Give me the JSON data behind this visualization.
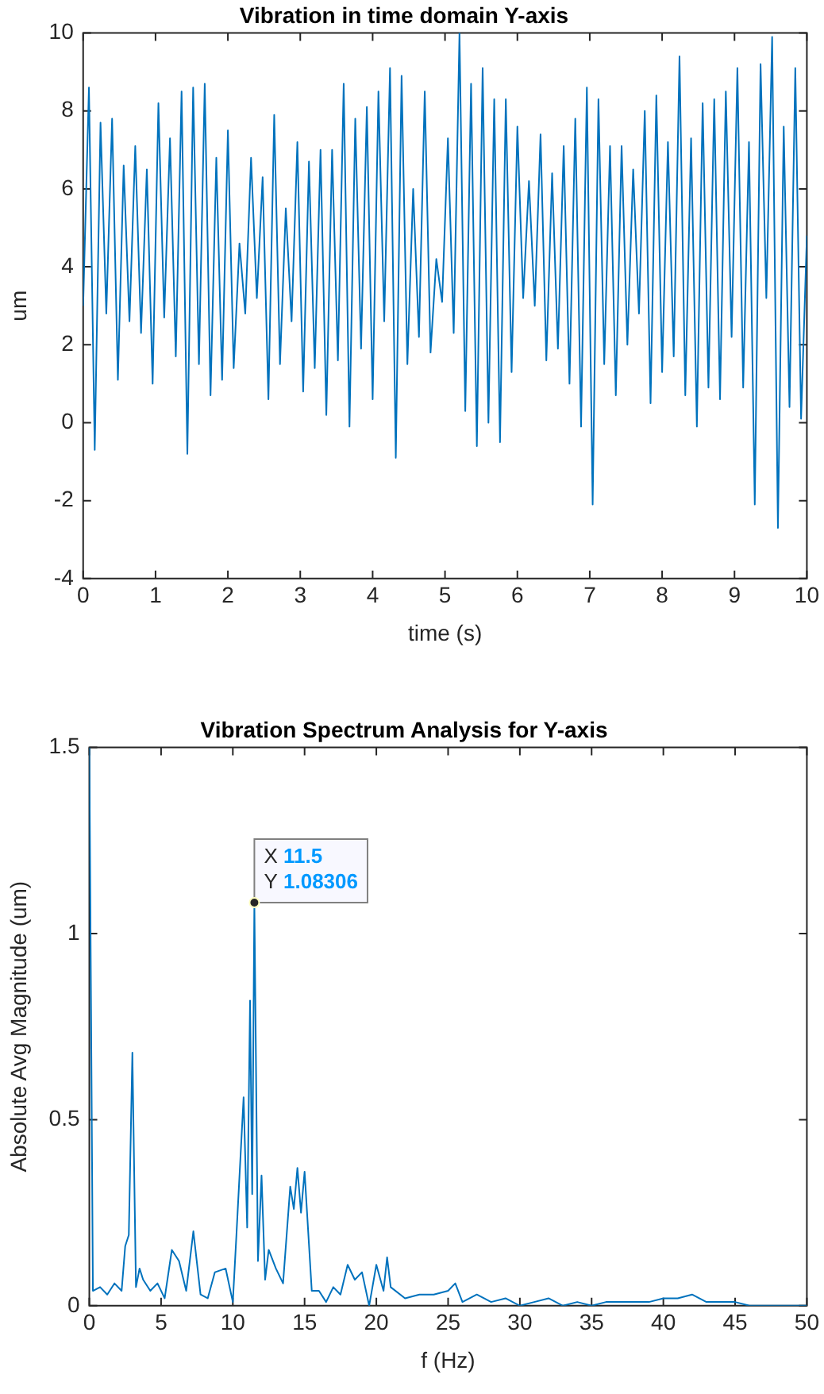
{
  "chart_data": [
    {
      "type": "line",
      "title": "Vibration in time domain Y-axis",
      "xlabel": "time (s)",
      "ylabel": "um",
      "xlim": [
        0,
        10
      ],
      "xticks": [
        0,
        1,
        2,
        3,
        4,
        5,
        6,
        7,
        8,
        9,
        10
      ],
      "ylim": [
        -4,
        10
      ],
      "yticks": [
        -4,
        -2,
        0,
        2,
        4,
        6,
        8,
        10
      ],
      "grid": false,
      "legend": false,
      "marker": "none",
      "line_style": "solid",
      "series": [
        {
          "color": "#0072bd",
          "x": [
            0,
            0.08,
            0.16,
            0.24,
            0.32,
            0.4,
            0.48,
            0.56,
            0.64,
            0.72,
            0.8,
            0.88,
            0.96,
            1.04,
            1.12,
            1.2,
            1.28,
            1.36,
            1.44,
            1.52,
            1.6,
            1.68,
            1.76,
            1.84,
            1.92,
            2,
            2.08,
            2.16,
            2.24,
            2.32,
            2.4,
            2.48,
            2.56,
            2.64,
            2.72,
            2.8,
            2.88,
            2.96,
            3.04,
            3.12,
            3.2,
            3.28,
            3.36,
            3.44,
            3.52,
            3.6,
            3.68,
            3.76,
            3.84,
            3.92,
            4,
            4.08,
            4.16,
            4.24,
            4.32,
            4.4,
            4.48,
            4.56,
            4.64,
            4.72,
            4.8,
            4.88,
            4.96,
            5.04,
            5.12,
            5.2,
            5.28,
            5.36,
            5.44,
            5.52,
            5.6,
            5.68,
            5.76,
            5.84,
            5.92,
            6,
            6.08,
            6.16,
            6.24,
            6.32,
            6.4,
            6.48,
            6.56,
            6.64,
            6.72,
            6.8,
            6.88,
            6.96,
            7.04,
            7.12,
            7.2,
            7.28,
            7.36,
            7.44,
            7.52,
            7.6,
            7.68,
            7.76,
            7.84,
            7.92,
            8,
            8.08,
            8.16,
            8.24,
            8.32,
            8.4,
            8.48,
            8.56,
            8.64,
            8.72,
            8.8,
            8.88,
            8.96,
            9.04,
            9.12,
            9.2,
            9.28,
            9.36,
            9.44,
            9.52,
            9.6,
            9.68,
            9.76,
            9.84,
            9.92,
            10
          ],
          "values": [
            3.0,
            8.6,
            -0.7,
            7.7,
            2.8,
            7.8,
            1.1,
            6.6,
            2.6,
            7.1,
            2.3,
            6.5,
            1.0,
            8.2,
            2.7,
            7.3,
            1.7,
            8.5,
            -0.8,
            8.6,
            1.5,
            8.7,
            0.7,
            6.8,
            1.1,
            7.5,
            1.4,
            4.6,
            2.8,
            6.8,
            3.2,
            6.3,
            0.6,
            7.9,
            1.5,
            5.5,
            2.6,
            7.2,
            0.8,
            6.7,
            1.4,
            7.0,
            0.2,
            7.0,
            1.6,
            8.7,
            -0.1,
            7.8,
            1.9,
            8.1,
            0.6,
            8.5,
            2.6,
            9.1,
            -0.9,
            8.9,
            1.5,
            6.0,
            2.2,
            8.5,
            1.8,
            4.2,
            3.1,
            7.3,
            2.3,
            10.0,
            0.3,
            8.7,
            -0.6,
            9.1,
            0.0,
            8.3,
            -0.5,
            8.3,
            1.3,
            7.6,
            3.2,
            6.2,
            3.0,
            7.4,
            1.6,
            6.4,
            1.9,
            7.1,
            1.0,
            7.8,
            -0.1,
            8.6,
            -2.1,
            8.3,
            1.5,
            7.1,
            0.7,
            7.1,
            2.0,
            6.5,
            2.8,
            8.0,
            0.5,
            8.4,
            1.3,
            7.2,
            1.7,
            9.4,
            0.7,
            7.3,
            -0.1,
            8.2,
            0.9,
            8.3,
            0.6,
            8.5,
            2.2,
            9.1,
            0.9,
            7.2,
            -2.1,
            9.2,
            3.2,
            9.9,
            -2.7,
            7.6,
            0.4,
            9.1,
            0.1,
            4.8
          ]
        }
      ]
    },
    {
      "type": "line",
      "title": "Vibration Spectrum Analysis for Y-axis",
      "xlabel": "f (Hz)",
      "ylabel": "Absolute Avg Magnitude (um)",
      "xlim": [
        0,
        50
      ],
      "xticks": [
        0,
        5,
        10,
        15,
        20,
        25,
        30,
        35,
        40,
        45,
        50
      ],
      "ylim": [
        0,
        1.5
      ],
      "yticks": [
        0,
        0.5,
        1,
        1.5
      ],
      "grid": false,
      "legend": false,
      "marker": "none",
      "line_style": "solid",
      "annotations": [
        {
          "text": "X 11.5\nY 1.08306",
          "x": 11.5,
          "y": 1.08306
        }
      ],
      "series": [
        {
          "color": "#0072bd",
          "x": [
            0,
            0.25,
            0.75,
            1.25,
            1.75,
            2.25,
            2.5,
            2.75,
            3,
            3.25,
            3.5,
            3.75,
            4.25,
            4.75,
            5.25,
            5.75,
            6.25,
            6.75,
            7.25,
            7.75,
            8.25,
            8.75,
            9.5,
            10,
            10.25,
            10.75,
            11,
            11.2,
            11.35,
            11.5,
            11.75,
            12,
            12.25,
            12.5,
            13,
            13.5,
            14,
            14.25,
            14.5,
            14.75,
            15,
            15.5,
            16,
            16.5,
            17,
            17.5,
            18,
            18.5,
            19,
            19.5,
            20,
            20.5,
            20.75,
            21,
            22,
            23,
            24,
            25,
            25.5,
            26,
            27,
            28,
            29,
            30,
            31,
            32,
            33,
            34,
            35,
            36,
            37,
            38,
            39,
            40,
            41,
            42,
            43,
            44,
            45,
            46,
            47,
            48,
            49,
            50
          ],
          "values": [
            1.5,
            0.04,
            0.05,
            0.03,
            0.06,
            0.04,
            0.16,
            0.19,
            0.68,
            0.05,
            0.1,
            0.07,
            0.04,
            0.06,
            0.02,
            0.15,
            0.12,
            0.04,
            0.2,
            0.03,
            0.02,
            0.09,
            0.1,
            0.01,
            0.19,
            0.56,
            0.21,
            0.82,
            0.3,
            1.08306,
            0.12,
            0.35,
            0.07,
            0.15,
            0.1,
            0.06,
            0.32,
            0.26,
            0.37,
            0.25,
            0.36,
            0.04,
            0.04,
            0.01,
            0.05,
            0.03,
            0.11,
            0.07,
            0.09,
            0.0,
            0.11,
            0.04,
            0.13,
            0.05,
            0.02,
            0.03,
            0.03,
            0.04,
            0.06,
            0.01,
            0.03,
            0.01,
            0.02,
            0.0,
            0.01,
            0.02,
            0.0,
            0.01,
            0.0,
            0.01,
            0.01,
            0.01,
            0.01,
            0.02,
            0.02,
            0.03,
            0.01,
            0.01,
            0.01,
            0.0,
            0.0,
            0.0,
            0.0,
            0.0
          ]
        }
      ]
    }
  ]
}
